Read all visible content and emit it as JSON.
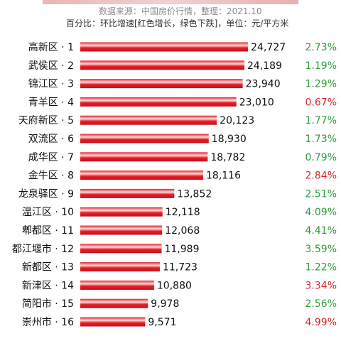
{
  "header": {
    "source": "数据来源：中国房价行情，整理：2021.10",
    "legend": "百分比：环比增速[红色增长，绿色下跌]，单位：元/平方米"
  },
  "colors": {
    "bar": "#e61e28",
    "bar_highlight": "#ffdede",
    "pct_green": "#2e9b3a",
    "pct_red": "#d62828"
  },
  "chart_data": {
    "type": "bar",
    "orientation": "horizontal",
    "unit": "元/平方米",
    "categories": [
      "高新区 · 1",
      "武侯区 · 2",
      "锦江区 · 3",
      "青羊区 · 4",
      "天府新区 · 5",
      "双流区 · 6",
      "成华区 · 7",
      "金牛区 · 8",
      "龙泉驿区 · 9",
      "温江区 · 10",
      "郫都区 · 11",
      "都江堰市 · 12",
      "新都区 · 13",
      "新津区 · 14",
      "简阳市 · 15",
      "崇州市 · 16"
    ],
    "values": [
      24727,
      24189,
      23940,
      23010,
      20123,
      18930,
      18782,
      18116,
      13852,
      12118,
      12068,
      11989,
      11723,
      10880,
      9978,
      9571
    ],
    "value_labels": [
      "24,727",
      "24,189",
      "23,940",
      "23,010",
      "20,123",
      "18,930",
      "18,782",
      "18,116",
      "13,852",
      "12,118",
      "12,068",
      "11,989",
      "11,723",
      "10,880",
      "9,978",
      "9,571"
    ],
    "pct_labels": [
      "2.73%",
      "1.19%",
      "1.29%",
      "0.67%",
      "1.77%",
      "1.73%",
      "0.79%",
      "2.84%",
      "2.51%",
      "4.09%",
      "4.41%",
      "3.59%",
      "1.22%",
      "3.34%",
      "2.56%",
      "4.99%"
    ],
    "pct_colors": [
      "green",
      "green",
      "green",
      "red",
      "green",
      "green",
      "green",
      "red",
      "green",
      "green",
      "green",
      "green",
      "green",
      "red",
      "green",
      "red"
    ]
  }
}
